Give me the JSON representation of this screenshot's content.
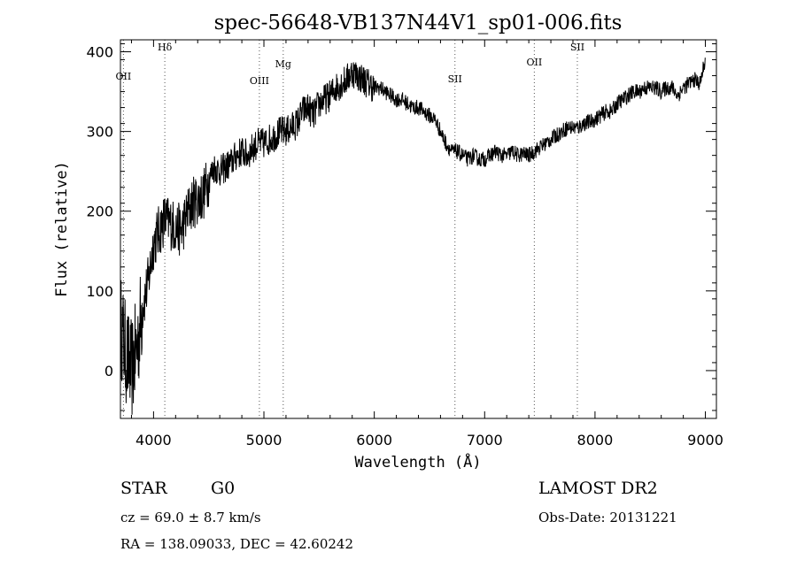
{
  "chart_data": {
    "type": "line",
    "title": "spec-56648-VB137N44V1_sp01-006.fits",
    "xlabel": "Wavelength (Å)",
    "ylabel": "Flux (relative)",
    "xlim": [
      3700,
      9100
    ],
    "ylim": [
      -60,
      415
    ],
    "xticks": [
      4000,
      5000,
      6000,
      7000,
      8000,
      9000
    ],
    "xtick_labels": [
      "4000",
      "5000",
      "6000",
      "7000",
      "8000",
      "9000"
    ],
    "yticks": [
      0,
      100,
      200,
      300,
      400
    ],
    "ytick_labels": [
      "0",
      "100",
      "200",
      "300",
      "400"
    ],
    "grid": false,
    "series": [
      {
        "x": [
          3700,
          3750,
          3800,
          3850,
          3900,
          3950,
          4000,
          4050,
          4100,
          4150,
          4200,
          4250,
          4300,
          4350,
          4400,
          4450,
          4500,
          4550,
          4600,
          4650,
          4700,
          4750,
          4800,
          4850,
          4900,
          4950,
          5000,
          5050,
          5100,
          5150,
          5200,
          5250,
          5300,
          5350,
          5400,
          5450,
          5500,
          5550,
          5600,
          5650,
          5700,
          5750,
          5800,
          5850,
          5900,
          5950,
          6000,
          6050,
          6100,
          6150,
          6200,
          6250,
          6300,
          6350,
          6400,
          6450,
          6500,
          6550,
          6600,
          6650,
          6700,
          6750,
          6800,
          6850,
          6900,
          6950,
          7000,
          7050,
          7100,
          7150,
          7200,
          7250,
          7300,
          7350,
          7400,
          7450,
          7500,
          7550,
          7600,
          7650,
          7700,
          7750,
          7800,
          7850,
          7900,
          7950,
          8000,
          8050,
          8100,
          8150,
          8200,
          8250,
          8300,
          8350,
          8400,
          8450,
          8500,
          8550,
          8600,
          8650,
          8700,
          8750,
          8800,
          8850,
          8900,
          8950,
          9000
        ],
        "y": [
          60,
          20,
          0,
          30,
          80,
          110,
          160,
          175,
          190,
          185,
          180,
          175,
          195,
          210,
          215,
          220,
          240,
          255,
          250,
          255,
          260,
          270,
          275,
          270,
          280,
          285,
          285,
          290,
          295,
          300,
          300,
          305,
          310,
          325,
          330,
          320,
          335,
          340,
          345,
          355,
          360,
          365,
          375,
          370,
          365,
          360,
          355,
          355,
          350,
          345,
          340,
          340,
          335,
          330,
          330,
          325,
          320,
          315,
          300,
          285,
          275,
          275,
          270,
          265,
          270,
          265,
          265,
          270,
          275,
          270,
          270,
          275,
          270,
          272,
          270,
          275,
          280,
          285,
          290,
          295,
          300,
          305,
          305,
          305,
          310,
          312,
          315,
          320,
          325,
          325,
          335,
          340,
          345,
          350,
          350,
          355,
          355,
          355,
          350,
          355,
          355,
          345,
          355,
          360,
          365,
          360,
          390
        ]
      }
    ],
    "lines": [
      {
        "label": "OII",
        "x": 3727
      },
      {
        "label": "Hδ",
        "x": 4102
      },
      {
        "label": "OIII",
        "x": 4959
      },
      {
        "label": "Mg",
        "x": 5175
      },
      {
        "label": "SII",
        "x": 6731
      },
      {
        "label": "OII",
        "x": 7450
      },
      {
        "label": "SII",
        "x": 7840
      }
    ]
  },
  "info": {
    "object_class": "STAR",
    "subclass": "G0",
    "survey": "LAMOST DR2",
    "redshift": "cz =  69.0 ± 8.7 km/s",
    "obs_date": "Obs-Date: 20131221",
    "coords": "RA = 138.09033, DEC =  42.60242"
  }
}
